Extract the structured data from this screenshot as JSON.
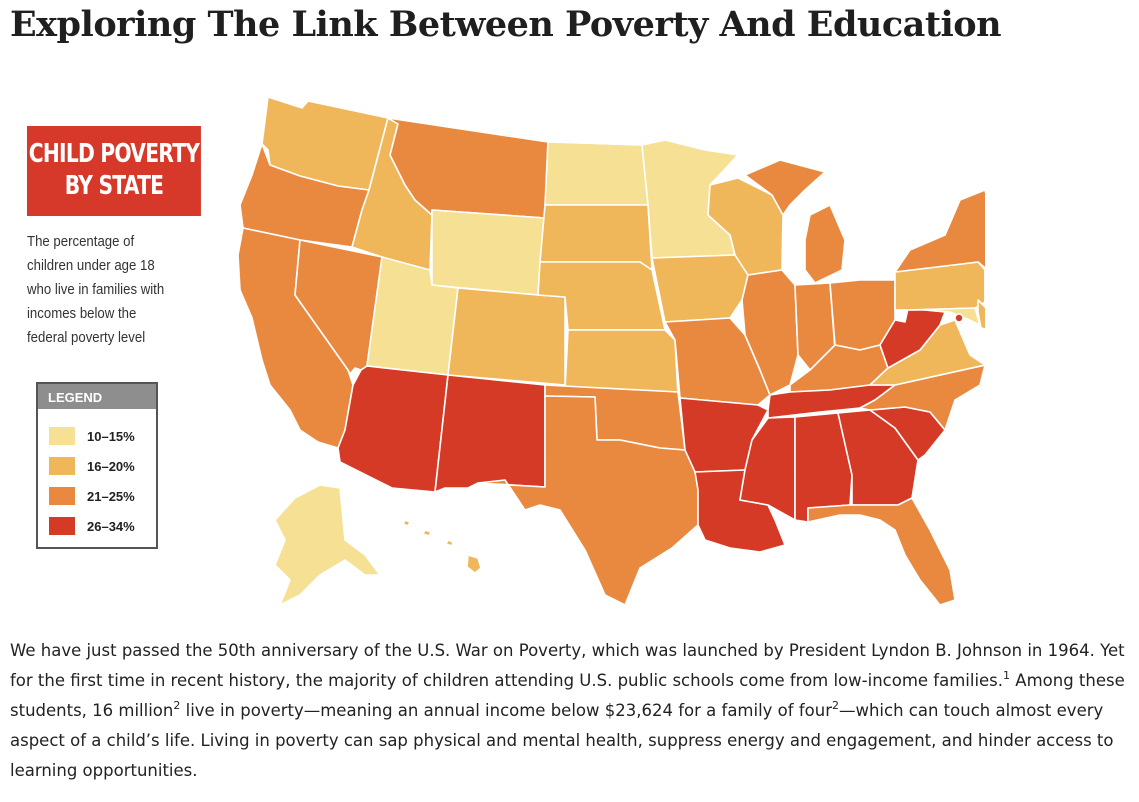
{
  "page": {
    "title": "Exploring The Link Between Poverty And Education"
  },
  "infobox": {
    "heading_line1": "CHILD POVERTY",
    "heading_line2": "BY STATE",
    "description": "The percentage of children under age 18 who live in families with incomes below the federal poverty level"
  },
  "legend": {
    "title": "LEGEND",
    "items": [
      {
        "label": "10–15%",
        "color": "#f6e093"
      },
      {
        "label": "16–20%",
        "color": "#efb75a"
      },
      {
        "label": "21–25%",
        "color": "#e98940"
      },
      {
        "label": "26–34%",
        "color": "#d53a26"
      }
    ]
  },
  "map": {
    "state_colors": {
      "WA": "#efb75a",
      "OR": "#e98940",
      "CA": "#e98940",
      "NV": "#e98940",
      "ID": "#efb75a",
      "MT": "#e98940",
      "WY": "#f6e093",
      "UT": "#f6e093",
      "AZ": "#d53a26",
      "CO": "#efb75a",
      "NM": "#d53a26",
      "ND": "#f6e093",
      "SD": "#efb75a",
      "NE": "#efb75a",
      "KS": "#efb75a",
      "OK": "#e98940",
      "TX": "#e98940",
      "MN": "#f6e093",
      "IA": "#efb75a",
      "MO": "#e98940",
      "AR": "#d53a26",
      "LA": "#d53a26",
      "WI": "#efb75a",
      "IL": "#e98940",
      "MI": "#e98940",
      "IN": "#e98940",
      "OH": "#e98940",
      "KY": "#e98940",
      "TN": "#d53a26",
      "MS": "#d53a26",
      "AL": "#d53a26",
      "GA": "#d53a26",
      "FL": "#e98940",
      "SC": "#d53a26",
      "NC": "#e98940",
      "VA": "#efb75a",
      "WV": "#d53a26",
      "PA": "#efb75a",
      "NY": "#e98940",
      "ME": "#efb75a",
      "VT": "#f6e093",
      "NH": "#f6e093",
      "MA": "#efb75a",
      "CT": "#f6e093",
      "RI": "#e98940",
      "NJ": "#efb75a",
      "DE": "#efb75a",
      "MD": "#f6e093",
      "DC": "#d53a26",
      "AK": "#f6e093",
      "HI": "#efb75a"
    }
  },
  "article": {
    "p1": "We have just passed the 50th anniversary of the U.S. War on Poverty, which was launched by President Lyndon B. Johnson in 1964. Yet for the first time in recent history, the majority of children attending U.S. public schools come from low-income families.",
    "sup1": "1",
    "p2": " Among these students, 16 million",
    "sup2": "2",
    "p3": " live in poverty—meaning an annual income below $23,624 for a family of four",
    "sup3": "2",
    "p4": "—which can touch almost every aspect of a child’s life. Living in poverty can sap physical and mental health, suppress energy and engagement, and hinder access to learning opportunities."
  }
}
